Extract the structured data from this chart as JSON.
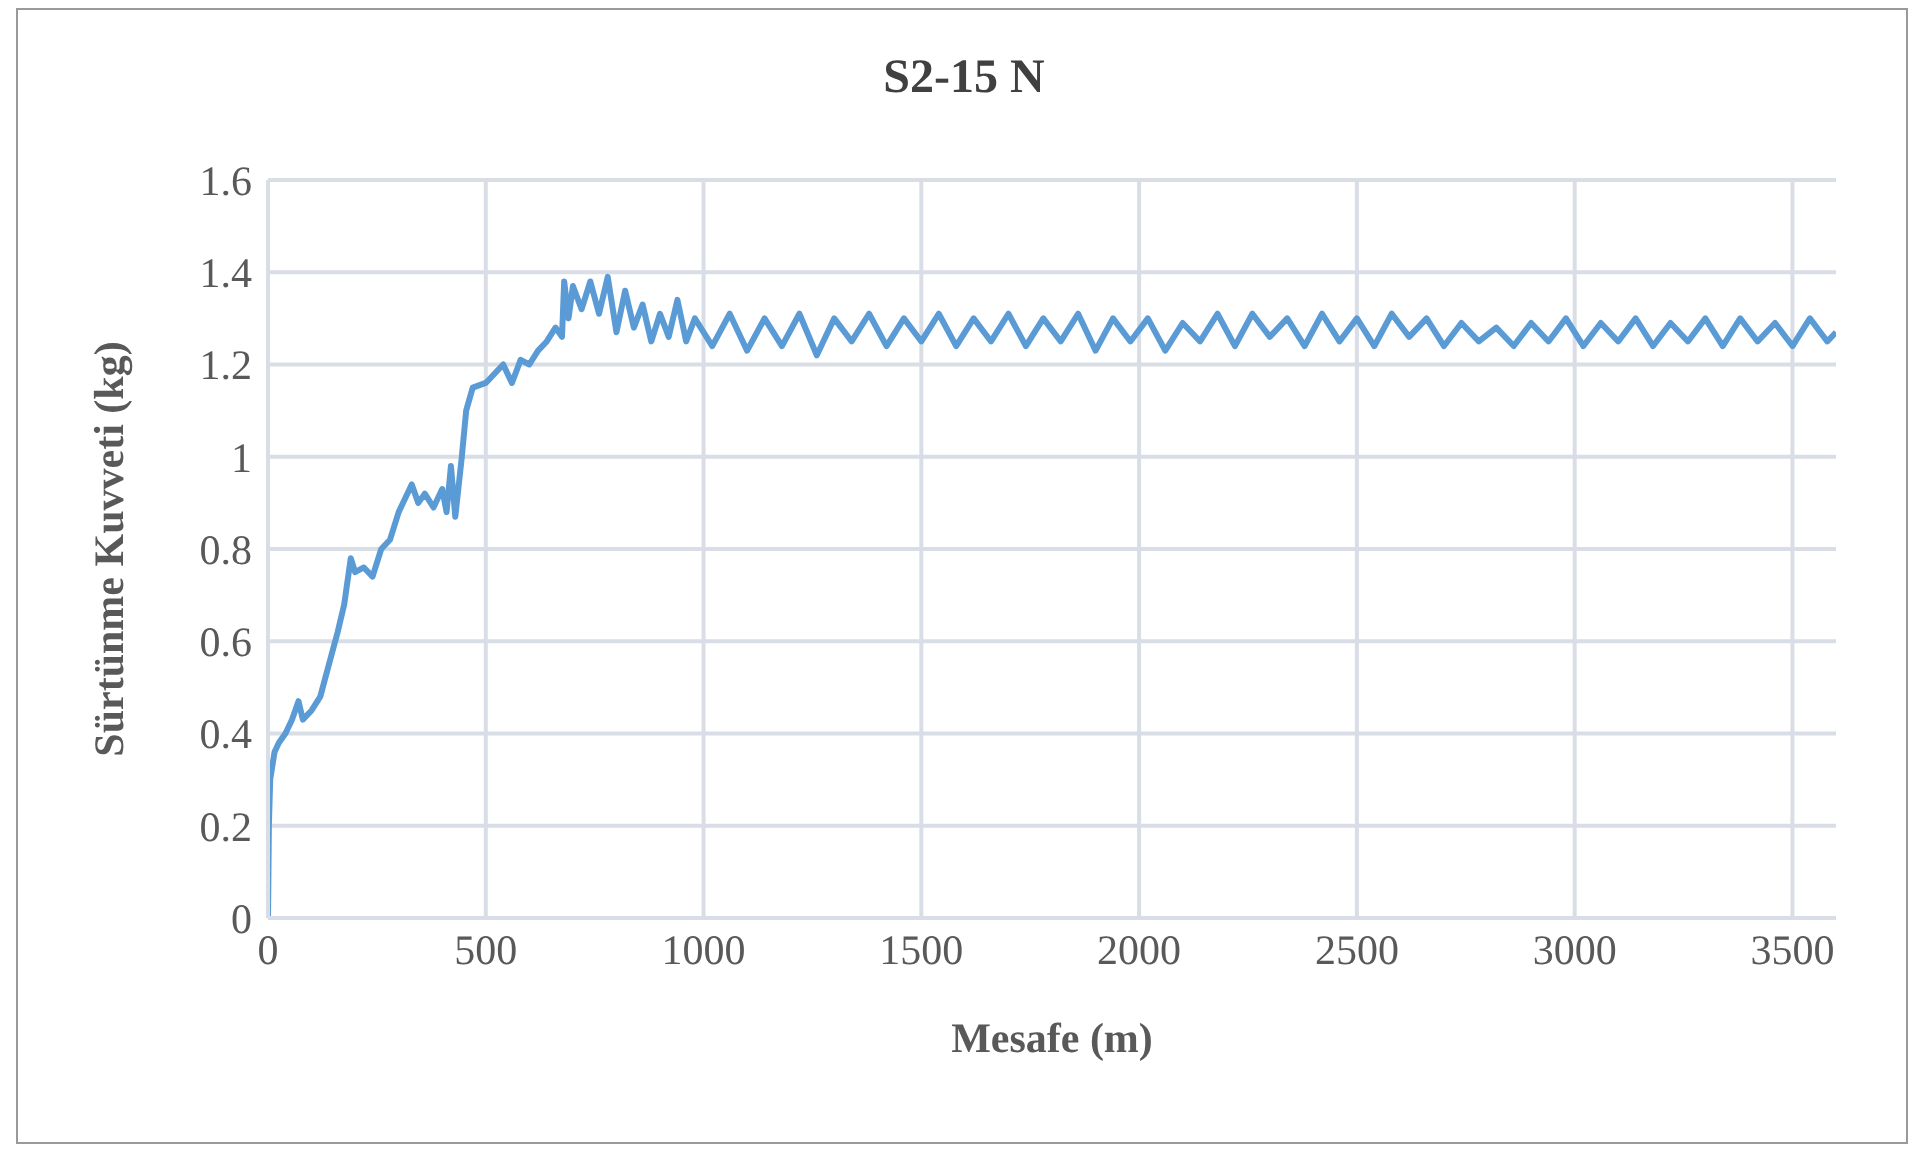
{
  "chart_data": {
    "type": "line",
    "title": "S2-15 N",
    "xlabel": "Mesafe (m)",
    "ylabel": "Sürtünme Kuvveti (kg)",
    "x": [
      0,
      2,
      5,
      15,
      25,
      40,
      55,
      70,
      80,
      100,
      120,
      140,
      160,
      175,
      190,
      200,
      220,
      240,
      260,
      280,
      300,
      330,
      345,
      360,
      380,
      400,
      410,
      420,
      430,
      445,
      455,
      470,
      500,
      520,
      540,
      560,
      580,
      600,
      620,
      640,
      660,
      675,
      680,
      690,
      700,
      720,
      740,
      760,
      780,
      800,
      820,
      840,
      860,
      880,
      900,
      920,
      940,
      960,
      980,
      1020,
      1060,
      1100,
      1140,
      1180,
      1220,
      1260,
      1300,
      1340,
      1380,
      1420,
      1460,
      1500,
      1540,
      1580,
      1620,
      1660,
      1700,
      1740,
      1780,
      1820,
      1860,
      1900,
      1940,
      1980,
      2020,
      2060,
      2100,
      2140,
      2180,
      2220,
      2260,
      2300,
      2340,
      2380,
      2420,
      2460,
      2500,
      2540,
      2580,
      2620,
      2660,
      2700,
      2740,
      2780,
      2820,
      2860,
      2900,
      2940,
      2980,
      3020,
      3060,
      3100,
      3140,
      3180,
      3220,
      3260,
      3300,
      3340,
      3380,
      3420,
      3460,
      3500,
      3540,
      3580,
      3600
    ],
    "series": [
      {
        "color": "#5b9bd5",
        "values": [
          0,
          0.2,
          0.3,
          0.36,
          0.38,
          0.4,
          0.43,
          0.47,
          0.43,
          0.45,
          0.48,
          0.55,
          0.62,
          0.68,
          0.78,
          0.75,
          0.76,
          0.74,
          0.8,
          0.82,
          0.88,
          0.94,
          0.9,
          0.92,
          0.89,
          0.93,
          0.88,
          0.98,
          0.87,
          1.0,
          1.1,
          1.15,
          1.16,
          1.18,
          1.2,
          1.16,
          1.21,
          1.2,
          1.23,
          1.25,
          1.28,
          1.26,
          1.38,
          1.3,
          1.37,
          1.32,
          1.38,
          1.31,
          1.39,
          1.27,
          1.36,
          1.28,
          1.33,
          1.25,
          1.31,
          1.26,
          1.34,
          1.25,
          1.3,
          1.24,
          1.31,
          1.23,
          1.3,
          1.24,
          1.31,
          1.22,
          1.3,
          1.25,
          1.31,
          1.24,
          1.3,
          1.25,
          1.31,
          1.24,
          1.3,
          1.25,
          1.31,
          1.24,
          1.3,
          1.25,
          1.31,
          1.23,
          1.3,
          1.25,
          1.3,
          1.23,
          1.29,
          1.25,
          1.31,
          1.24,
          1.31,
          1.26,
          1.3,
          1.24,
          1.31,
          1.25,
          1.3,
          1.24,
          1.31,
          1.26,
          1.3,
          1.24,
          1.29,
          1.25,
          1.28,
          1.24,
          1.29,
          1.25,
          1.3,
          1.24,
          1.29,
          1.25,
          1.3,
          1.24,
          1.29,
          1.25,
          1.3,
          1.24,
          1.3,
          1.25,
          1.29,
          1.24,
          1.3,
          1.25,
          1.27
        ]
      }
    ],
    "xlim": [
      0,
      3600
    ],
    "xticks": [
      0,
      500,
      1000,
      1500,
      2000,
      2500,
      3000,
      3500
    ],
    "ylim": [
      0,
      1.6
    ],
    "yticks": [
      0,
      0.2,
      0.4,
      0.6,
      0.8,
      1,
      1.2,
      1.4,
      1.6
    ],
    "grid": true,
    "legend": false,
    "marker": "none",
    "line_style": "solid"
  }
}
